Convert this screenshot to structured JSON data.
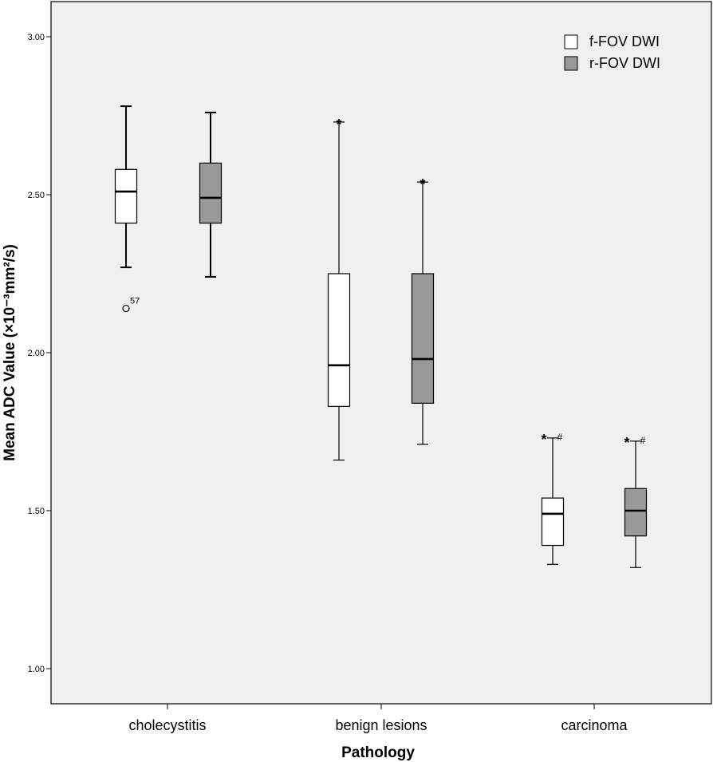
{
  "chart_data": {
    "type": "boxplot",
    "xlabel": "Pathology",
    "ylabel": "Mean ADC Value (×10⁻³mm²/s)",
    "ylim": [
      0.9,
      3.12
    ],
    "yticks": [
      "1.00",
      "1.50",
      "2.00",
      "2.50",
      "3.00"
    ],
    "ytick_values": [
      1.0,
      1.5,
      2.0,
      2.5,
      3.0
    ],
    "categories": [
      "cholecystitis",
      "benign lesions",
      "carcinoma"
    ],
    "legend": {
      "placement": "top-right"
    },
    "series": [
      {
        "name": "f-FOV DWI",
        "color": "#ffffff",
        "boxes": [
          {
            "category": "cholecystitis",
            "whisker_low": 2.27,
            "q1": 2.41,
            "median": 2.51,
            "q3": 2.58,
            "whisker_high": 2.78,
            "outliers": [
              {
                "value": 2.14,
                "label": "57"
              }
            ],
            "annotation": ""
          },
          {
            "category": "benign lesions",
            "whisker_low": 1.66,
            "q1": 1.83,
            "median": 1.96,
            "q3": 2.25,
            "whisker_high": 2.73,
            "outliers": [],
            "annotation": "*"
          },
          {
            "category": "carcinoma",
            "whisker_low": 1.33,
            "q1": 1.39,
            "median": 1.49,
            "q3": 1.54,
            "whisker_high": 1.73,
            "outliers": [],
            "annotation": "*",
            "annotation2": "#"
          }
        ]
      },
      {
        "name": "r-FOV DWI",
        "color": "#999999",
        "boxes": [
          {
            "category": "cholecystitis",
            "whisker_low": 2.24,
            "q1": 2.41,
            "median": 2.49,
            "q3": 2.6,
            "whisker_high": 2.76,
            "outliers": [],
            "annotation": ""
          },
          {
            "category": "benign lesions",
            "whisker_low": 1.71,
            "q1": 1.84,
            "median": 1.98,
            "q3": 2.25,
            "whisker_high": 2.54,
            "outliers": [],
            "annotation": "*"
          },
          {
            "category": "carcinoma",
            "whisker_low": 1.32,
            "q1": 1.42,
            "median": 1.5,
            "q3": 1.57,
            "whisker_high": 1.72,
            "outliers": [],
            "annotation": "*",
            "annotation2": "#"
          }
        ]
      }
    ]
  }
}
